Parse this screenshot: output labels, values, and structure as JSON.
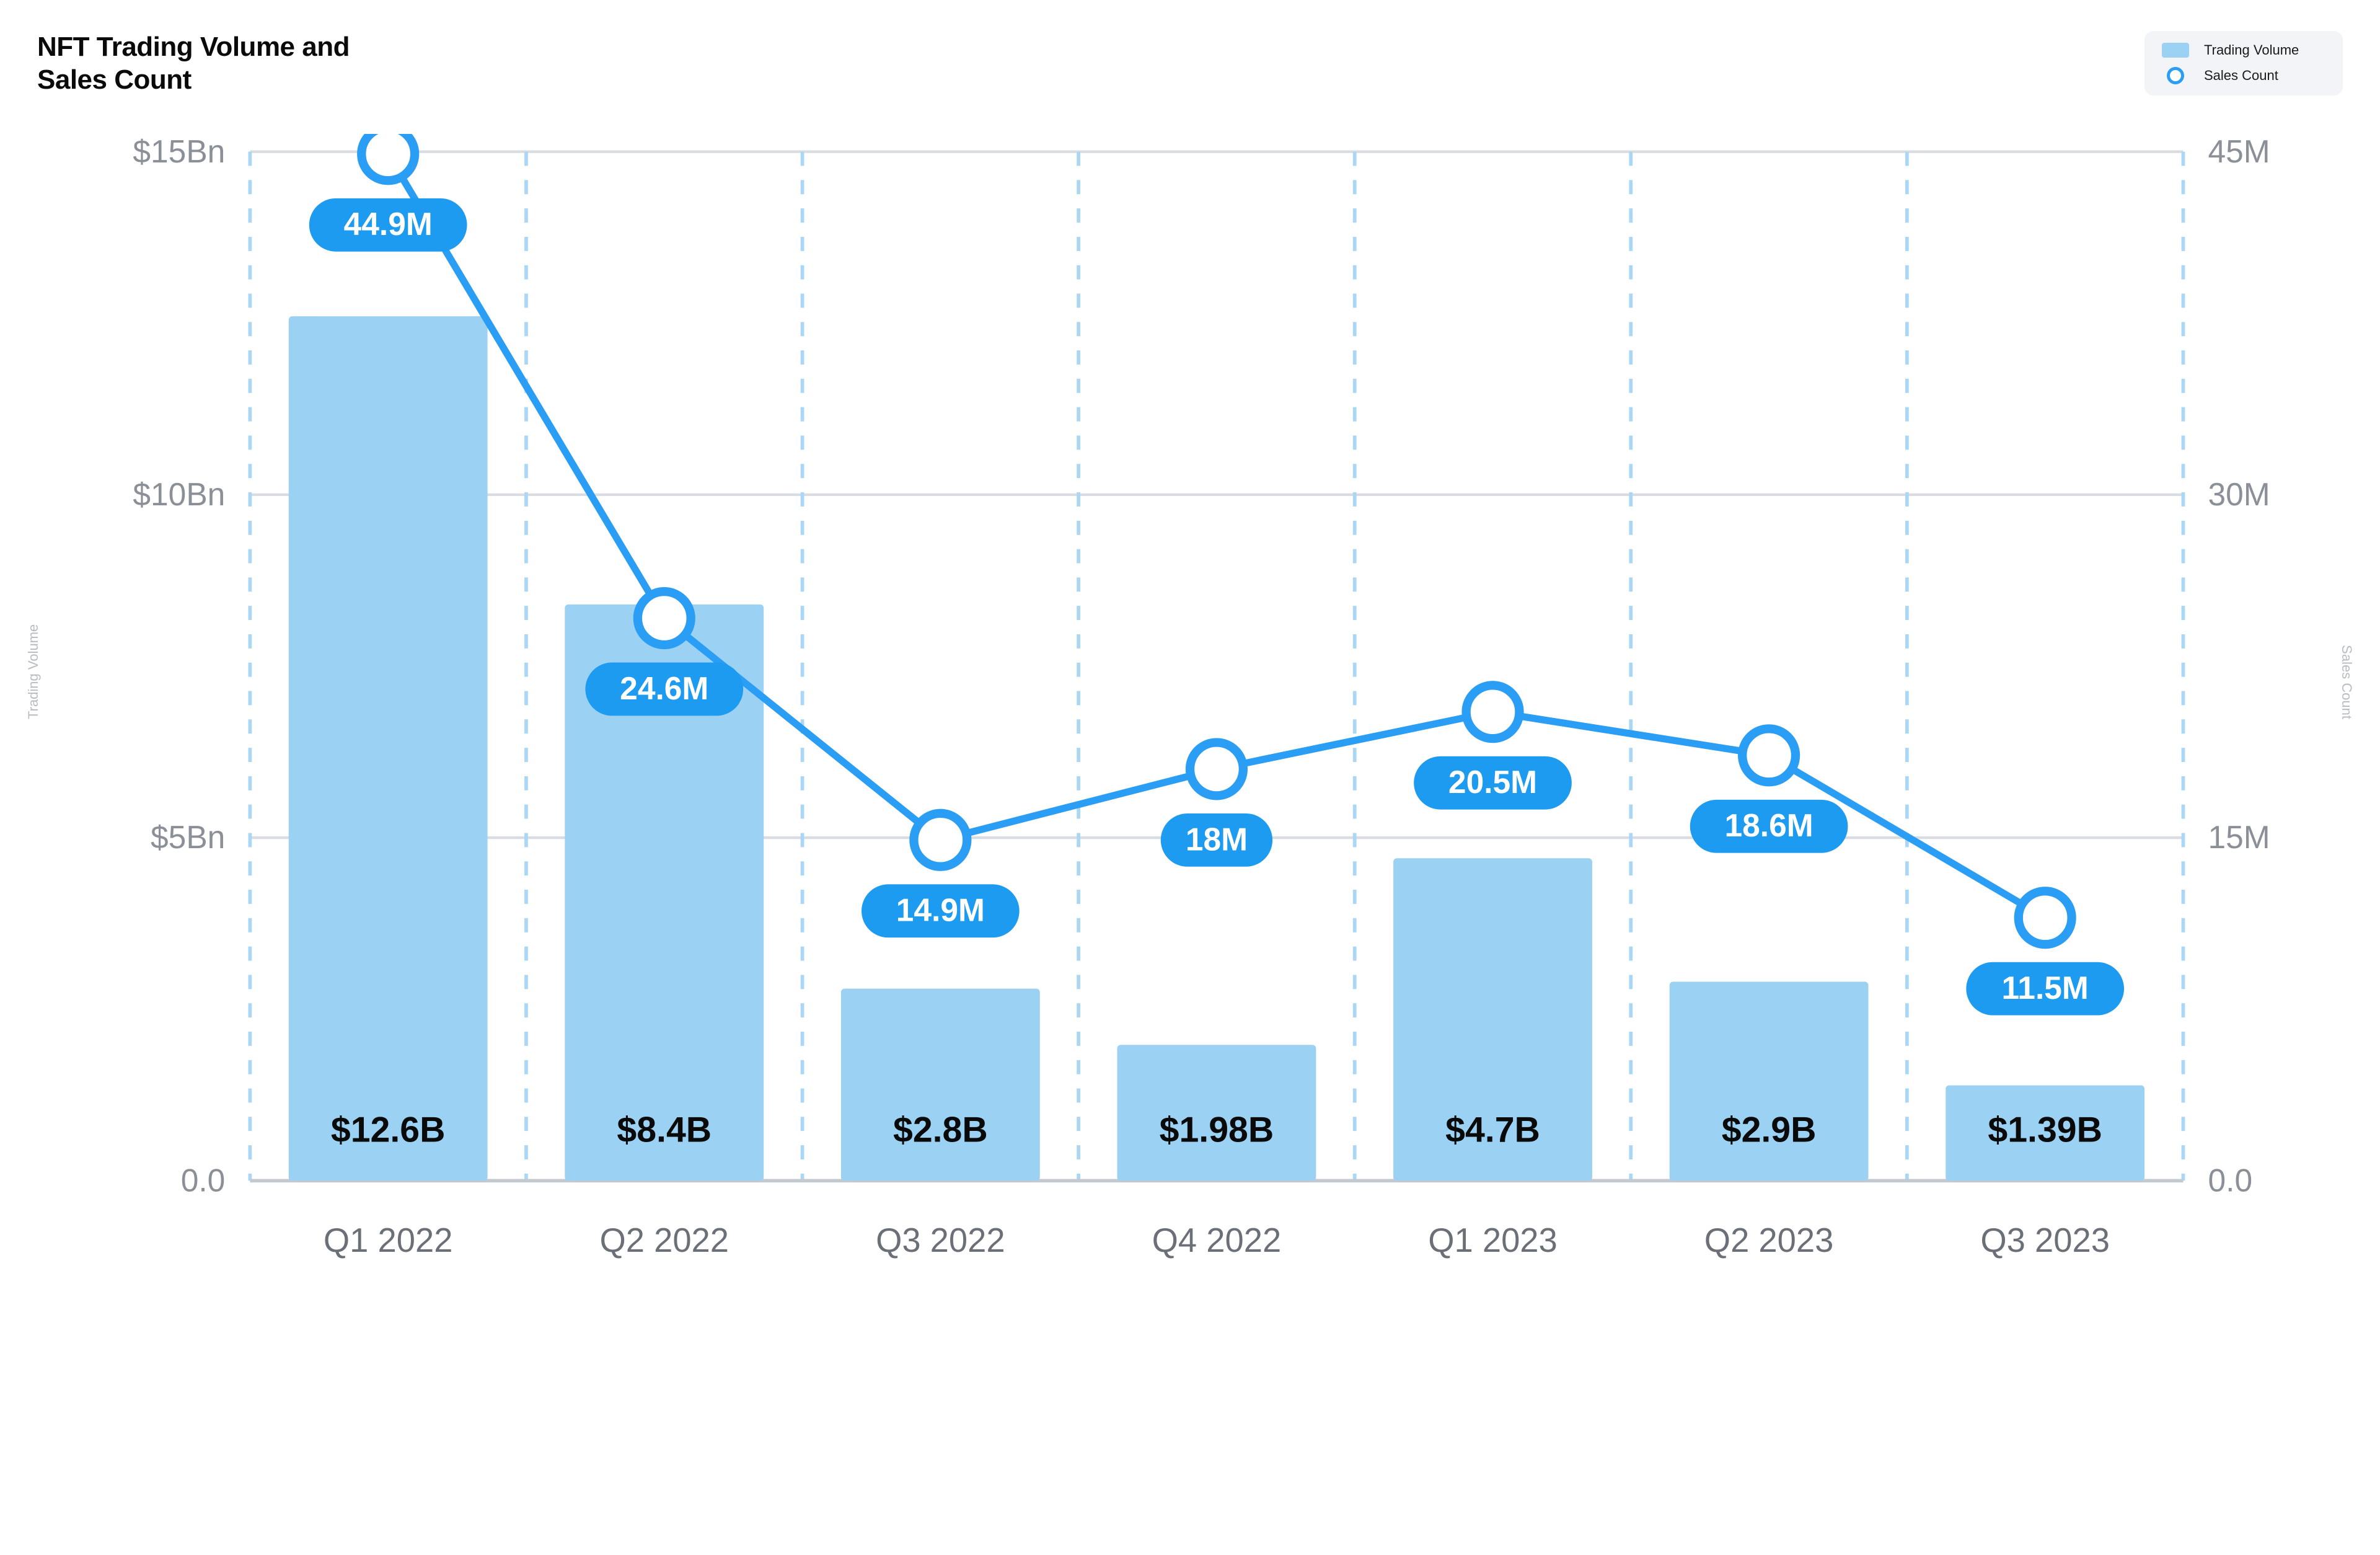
{
  "title": "NFT Trading Volume and Sales Count",
  "legend": {
    "volume_label": "Trading Volume",
    "count_label": "Sales Count"
  },
  "chart": {
    "type": "bar+line",
    "background_color": "#ffffff",
    "grid_color": "#d9dce1",
    "grid_dash_color": "#a9d7f5",
    "bar_color": "#9bd1f2",
    "line_color": "#2a9df4",
    "marker_fill": "#ffffff",
    "marker_stroke": "#2a9df4",
    "pill_fill": "#1d9bf0",
    "pill_text_color": "#ffffff",
    "bar_label_color": "#0a0a0a",
    "tick_color": "#8a8f98",
    "axis_title_color": "#b8bcc4",
    "title_fontsize": 44,
    "tick_fontsize": 18,
    "bar_label_fontsize": 20,
    "pill_fontsize": 18,
    "x_label_fontsize": 19,
    "legend_bg": "#f2f4f7",
    "y_left": {
      "title": "Trading Volume",
      "min": 0,
      "max": 15,
      "ticks": [
        {
          "v": 0,
          "label": "0.0"
        },
        {
          "v": 5,
          "label": "$5Bn"
        },
        {
          "v": 10,
          "label": "$10Bn"
        },
        {
          "v": 15,
          "label": "$15Bn"
        }
      ]
    },
    "y_right": {
      "title": "Sales Count",
      "min": 0,
      "max": 45,
      "ticks": [
        {
          "v": 0,
          "label": "0.0"
        },
        {
          "v": 15,
          "label": "15M"
        },
        {
          "v": 30,
          "label": "30M"
        },
        {
          "v": 45,
          "label": "45M"
        }
      ]
    },
    "categories": [
      "Q1 2022",
      "Q2 2022",
      "Q3 2022",
      "Q4 2022",
      "Q1 2023",
      "Q2 2023",
      "Q3 2023"
    ],
    "volume_values": [
      12.6,
      8.4,
      2.8,
      1.98,
      4.7,
      2.9,
      1.39
    ],
    "volume_labels": [
      "$12.6B",
      "$8.4B",
      "$2.8B",
      "$1.98B",
      "$4.7B",
      "$2.9B",
      "$1.39B"
    ],
    "count_values": [
      44.9,
      24.6,
      14.9,
      18,
      20.5,
      18.6,
      11.5
    ],
    "count_labels": [
      "44.9M",
      "24.6M",
      "14.9M",
      "18M",
      "20.5M",
      "18.6M",
      "11.5M"
    ],
    "bar_width_ratio": 0.72,
    "marker_radius": 15,
    "marker_stroke_width": 5,
    "line_width": 4
  }
}
